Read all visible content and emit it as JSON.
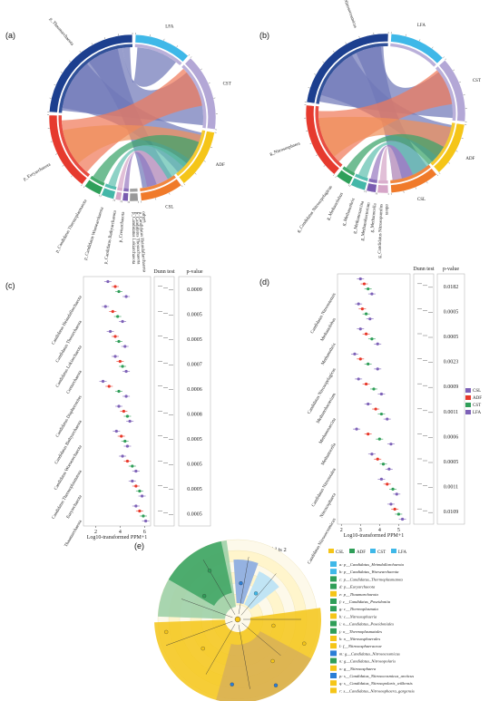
{
  "colors": {
    "LFA": "#3fb8e8",
    "CST": "#b3a7d6",
    "ADF": "#f5c518",
    "CSL": "#f07a2a",
    "navy": "#1c3f8f",
    "red": "#e63a2e",
    "green": "#2fa05a",
    "teal": "#44b7a8",
    "pink": "#d6a6c8",
    "purple": "#7a5cb0",
    "grey": "#999999"
  },
  "panels": {
    "a": "(a)",
    "b": "(b)",
    "c": "(c)",
    "d": "(d)",
    "e": "(e)"
  },
  "chart_data": [
    {
      "type": "chord",
      "panel": "a",
      "groups": [
        "LFA",
        "CST",
        "ADF",
        "CSL"
      ],
      "taxa": [
        "p_Thaumarchaeota",
        "p_Euryarchaeota",
        "p_Candidatus Thermoplasmatota",
        "p_Candidatus Woesearchaeota",
        "p_Candidatus Bathyarchaeota",
        "p_Crenarchaeota",
        "p_Candidatus Lokiarchaeota",
        "p_Candidatus Thorarchaeota",
        "p_Candidatus Heimdallarchaeota",
        "others"
      ]
    },
    {
      "type": "chord",
      "panel": "b",
      "groups": [
        "LFA",
        "CST",
        "ADF",
        "CSL"
      ],
      "taxa": [
        "g_Candidatus Nitrosocosmicus",
        "g_Nitrososphaera",
        "g_Candidatus Nitrosopelagicus",
        "g_Methanolobus",
        "g_Methanothrix",
        "g_Methanosarcina",
        "g_Methanobacterium",
        "g_Methanocella",
        "g_Candidatus Nitrosopumilus",
        "others"
      ]
    },
    {
      "type": "scatter",
      "panel": "c",
      "title": "",
      "xlabel": "Log10-transformed PPM+1",
      "series": [
        {
          "name": "CSL",
          "color": "#7e62b8"
        },
        {
          "name": "ADF",
          "color": "#e8382a"
        },
        {
          "name": "CST",
          "color": "#2f9e58"
        },
        {
          "name": "LFA",
          "color": "#7e62b8"
        }
      ],
      "categories": [
        "Candidatus Heimdallarchaeota",
        "Candidatus Thorarchaeota",
        "Candidatus Lokiarchaeota",
        "Crenarchaeota",
        "Candidatus Diapherotrites",
        "Candidatus Bathyarchaeota",
        "Candidatus Woesearchaeota",
        "Candidatus Thermoplasmatota",
        "Euryarchaeota",
        "Thaumarchaeota"
      ],
      "points": [
        [
          3.0,
          3.6,
          3.9,
          4.5
        ],
        [
          2.8,
          3.4,
          3.8,
          4.2
        ],
        [
          3.2,
          3.6,
          3.9,
          4.4
        ],
        [
          3.6,
          4.0,
          4.2,
          4.5
        ],
        [
          2.6,
          3.1,
          3.9,
          4.5
        ],
        [
          3.9,
          4.3,
          4.6,
          4.8
        ],
        [
          3.7,
          4.1,
          4.4,
          4.6
        ],
        [
          4.2,
          4.6,
          5.0,
          5.3
        ],
        [
          5.0,
          5.3,
          5.6,
          5.8
        ],
        [
          5.3,
          5.6,
          5.9,
          6.1
        ]
      ],
      "xticks": [
        "2",
        "4",
        "6"
      ],
      "xlim": [
        1,
        6.5
      ],
      "dunn_header": "Dunn test",
      "pvalue_header": "p-value",
      "pvalues": [
        "0.0009",
        "0.0005",
        "0.0005",
        "0.0007",
        "0.0006",
        "0.0008",
        "0.0005",
        "0.0005",
        "0.0005",
        "0.0005"
      ]
    },
    {
      "type": "scatter",
      "panel": "d",
      "title": "",
      "xlabel": "Log10-transformed PPM+1",
      "series": [
        {
          "name": "CSL",
          "color": "#7e62b8"
        },
        {
          "name": "ADF",
          "color": "#e8382a"
        },
        {
          "name": "CST",
          "color": "#2f9e58"
        },
        {
          "name": "LFA",
          "color": "#7e62b8"
        }
      ],
      "legend": [
        "CSL",
        "ADF",
        "CST",
        "LFA"
      ],
      "categories": [
        "Candidatus Nitrosotenuis",
        "Methanolobus",
        "Methanothrix",
        "Candidatus Nitrosopelagicus",
        "Methanobacterium",
        "Methanosarcina",
        "Methanocella",
        "Candidatus Nitrosotalea",
        "Nitrososphaera",
        "Candidatus Nitrosocosmicus"
      ],
      "points": [
        [
          3.0,
          3.2,
          3.4,
          3.6
        ],
        [
          2.9,
          3.1,
          3.3,
          3.5
        ],
        [
          3.0,
          3.3,
          3.6,
          3.9
        ],
        [
          2.7,
          3.0,
          3.4,
          3.9
        ],
        [
          2.9,
          3.3,
          3.7,
          4.1
        ],
        [
          3.4,
          3.8,
          4.1,
          4.4
        ],
        [
          2.8,
          3.4,
          4.0,
          4.6
        ],
        [
          3.6,
          3.9,
          4.2,
          4.5
        ],
        [
          4.1,
          4.4,
          4.7,
          4.9
        ],
        [
          4.6,
          4.8,
          5.0,
          5.2
        ]
      ],
      "xticks": [
        "2",
        "3",
        "4",
        "5"
      ],
      "xlim": [
        1.8,
        5.6
      ],
      "dunn_header": "Dunn test",
      "pvalue_header": "p-value",
      "pvalues": [
        "0.0182",
        "0.0005",
        "0.0005",
        "0.0023",
        "0.0009",
        "0.0011",
        "0.0006",
        "0.0005",
        "0.0011",
        "0.0109"
      ]
    },
    {
      "type": "cladogram",
      "panel": "e",
      "title": "The current LDA threshold is 2",
      "legend_groups": [
        "CSL",
        "ADF",
        "CST",
        "LFA"
      ],
      "legend_items": [
        {
          "code": "a",
          "label": "p__Candidatus_Heimdallarchaeota",
          "color": "#3fb8e8"
        },
        {
          "code": "b",
          "label": "p__Candidatus_Woesearchaeota",
          "color": "#3fb8e8"
        },
        {
          "code": "c",
          "label": "p__Candidatus_Thermoplasmatota",
          "color": "#2f9e58"
        },
        {
          "code": "d",
          "label": "p__Euryarchaeota",
          "color": "#2f9e58"
        },
        {
          "code": "e",
          "label": "p__Thaumarchaeota",
          "color": "#f5c518"
        },
        {
          "code": "f",
          "label": "c__Candidatus_Poseidoniia",
          "color": "#2f9e58"
        },
        {
          "code": "g",
          "label": "c__Thermoplasmata",
          "color": "#2f9e58"
        },
        {
          "code": "h",
          "label": "c__Nitrososphaeria",
          "color": "#f5c518"
        },
        {
          "code": "i",
          "label": "o__Candidatus_Poseidoniales",
          "color": "#2f9e58"
        },
        {
          "code": "j",
          "label": "o__Thermoplasmatales",
          "color": "#2f9e58"
        },
        {
          "code": "k",
          "label": "o__Nitrososphaerales",
          "color": "#f5c518"
        },
        {
          "code": "l",
          "label": "f__Nitrososphaeraceae",
          "color": "#f5c518"
        },
        {
          "code": "m",
          "label": "g__Candidatus_Nitrosocosmicus",
          "color": "#2b7ed6"
        },
        {
          "code": "n",
          "label": "g__Candidatus_Nitrosopolaris",
          "color": "#2f9e58"
        },
        {
          "code": "o",
          "label": "g__Nitrososphaera",
          "color": "#f5c518"
        },
        {
          "code": "p",
          "label": "s__Candidatus_Nitrosocosmicus_arcticus",
          "color": "#2b7ed6"
        },
        {
          "code": "q",
          "label": "s__Candidatus_Nitrosopolaris_wilkensis",
          "color": "#f5c518"
        },
        {
          "code": "r",
          "label": "s__Candidatus_Nitrososphaera_gargensis",
          "color": "#f5c518"
        }
      ]
    }
  ]
}
